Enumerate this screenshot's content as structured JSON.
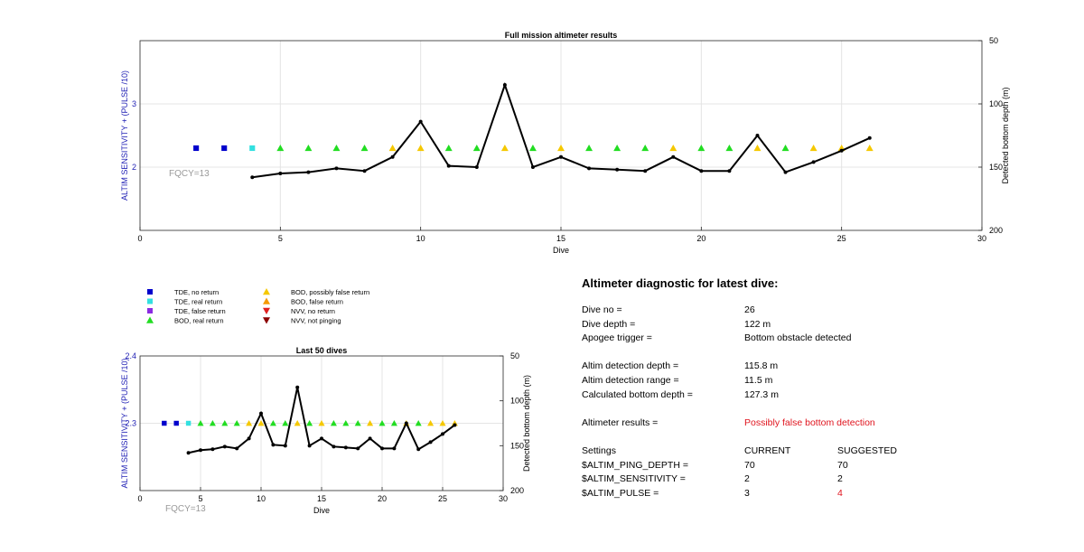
{
  "chart_data": [
    {
      "type": "scatter",
      "title": "Full mission altimeter results",
      "xlabel": "Dive",
      "ylabel": "ALTIM SENSITIVITY + (PULSE /10)",
      "ylabel_right": "Detected bottom depth (m)",
      "xlim": [
        0,
        30
      ],
      "ylim": [
        1,
        4
      ],
      "ylim_right": [
        50,
        200
      ],
      "right_axis_reversed": true,
      "xticks": [
        "0",
        "5",
        "10",
        "15",
        "20",
        "25",
        "30"
      ],
      "yticks": [
        "2",
        "3"
      ],
      "yticks_right": [
        "50",
        "100",
        "150",
        "200"
      ],
      "grid": true,
      "annotation": "FQCY=13",
      "series": [
        {
          "name": "TDE, no return",
          "marker": "square",
          "color": "#0000cc",
          "x": [
            2,
            3
          ],
          "y": [
            2.3,
            2.3
          ]
        },
        {
          "name": "TDE, real return",
          "marker": "square",
          "color": "#33e0e0",
          "x": [
            4
          ],
          "y": [
            2.3
          ]
        },
        {
          "name": "BOD, real return",
          "marker": "triangle-up",
          "color": "#22dd22",
          "x": [
            5,
            6,
            7,
            8,
            11,
            12,
            14,
            16,
            17,
            18,
            20,
            21,
            23
          ],
          "y": [
            2.3,
            2.3,
            2.3,
            2.3,
            2.3,
            2.3,
            2.3,
            2.3,
            2.3,
            2.3,
            2.3,
            2.3,
            2.3
          ]
        },
        {
          "name": "BOD, possibly false return",
          "marker": "triangle-up",
          "color": "#f5c800",
          "x": [
            9,
            10,
            13,
            15,
            19,
            22,
            24,
            25,
            26
          ],
          "y": [
            2.3,
            2.3,
            2.3,
            2.3,
            2.3,
            2.3,
            2.3,
            2.3,
            2.3
          ]
        },
        {
          "name": "Detected bottom depth",
          "axis": "right",
          "color": "#000000",
          "x": [
            4,
            5,
            6,
            7,
            8,
            9,
            10,
            11,
            12,
            13,
            14,
            15,
            16,
            17,
            18,
            19,
            20,
            21,
            22,
            23,
            24,
            25,
            26
          ],
          "y": [
            158,
            155,
            154,
            151,
            153,
            142,
            114,
            149,
            150,
            85,
            150,
            142,
            151,
            152,
            153,
            142,
            153,
            153,
            125,
            154,
            146,
            137,
            127
          ]
        }
      ]
    },
    {
      "type": "scatter",
      "title": "Last 50 dives",
      "xlabel": "Dive",
      "ylabel": "ALTIM SENSITIVITY + (PULSE /10)",
      "ylabel_right": "Detected bottom depth (m)",
      "xlim": [
        0,
        30
      ],
      "ylim": [
        2.2,
        2.4
      ],
      "ylim_right": [
        50,
        200
      ],
      "right_axis_reversed": true,
      "xticks": [
        "0",
        "5",
        "10",
        "15",
        "20",
        "25",
        "30"
      ],
      "yticks": [
        "2.3",
        "2.4"
      ],
      "yticks_right": [
        "50",
        "100",
        "150",
        "200"
      ],
      "grid": true,
      "annotation": "FQCY=13",
      "series": [
        {
          "name": "TDE, no return",
          "marker": "square",
          "color": "#0000cc",
          "x": [
            2,
            3
          ],
          "y": [
            2.3,
            2.3
          ]
        },
        {
          "name": "TDE, real return",
          "marker": "square",
          "color": "#33e0e0",
          "x": [
            4
          ],
          "y": [
            2.3
          ]
        },
        {
          "name": "BOD, real return",
          "marker": "triangle-up",
          "color": "#22dd22",
          "x": [
            5,
            6,
            7,
            8,
            11,
            12,
            14,
            16,
            17,
            18,
            20,
            21,
            23
          ],
          "y": [
            2.3,
            2.3,
            2.3,
            2.3,
            2.3,
            2.3,
            2.3,
            2.3,
            2.3,
            2.3,
            2.3,
            2.3,
            2.3
          ]
        },
        {
          "name": "BOD, possibly false return",
          "marker": "triangle-up",
          "color": "#f5c800",
          "x": [
            9,
            10,
            13,
            15,
            19,
            22,
            24,
            25,
            26
          ],
          "y": [
            2.3,
            2.3,
            2.3,
            2.3,
            2.3,
            2.3,
            2.3,
            2.3,
            2.3
          ]
        },
        {
          "name": "Detected bottom depth",
          "axis": "right",
          "color": "#000000",
          "x": [
            4,
            5,
            6,
            7,
            8,
            9,
            10,
            11,
            12,
            13,
            14,
            15,
            16,
            17,
            18,
            19,
            20,
            21,
            22,
            23,
            24,
            25,
            26
          ],
          "y": [
            158,
            155,
            154,
            151,
            153,
            142,
            114,
            149,
            150,
            85,
            150,
            142,
            151,
            152,
            153,
            142,
            153,
            153,
            125,
            154,
            146,
            137,
            127
          ]
        }
      ]
    }
  ],
  "legend": [
    {
      "label": "TDE, no return",
      "marker": "square",
      "color": "#0000cc"
    },
    {
      "label": "TDE, real return",
      "marker": "square",
      "color": "#33e0e0"
    },
    {
      "label": "TDE, false return",
      "marker": "square",
      "color": "#8a2be2"
    },
    {
      "label": "BOD, real return",
      "marker": "triangle-up",
      "color": "#22dd22"
    },
    {
      "label": "BOD, possibly false return",
      "marker": "triangle-up",
      "color": "#f5c800"
    },
    {
      "label": "BOD, false return",
      "marker": "triangle-up",
      "color": "#f59a00"
    },
    {
      "label": "NVV, no return",
      "marker": "triangle-down",
      "color": "#e02020"
    },
    {
      "label": "NVV, not pinging",
      "marker": "triangle-down",
      "color": "#8b0000"
    }
  ],
  "diagnostic": {
    "heading": "Altimeter diagnostic for latest dive:",
    "dive_no_label": "Dive no =",
    "dive_no": "26",
    "dive_depth_label": "Dive depth =",
    "dive_depth": "122 m",
    "apogee_label": "Apogee trigger =",
    "apogee": "Bottom obstacle detected",
    "detection_depth_label": "Altim detection depth =",
    "detection_depth": "115.8 m",
    "detection_range_label": "Altim detection range =",
    "detection_range": "11.5 m",
    "bottom_depth_label": "Calculated bottom depth =",
    "bottom_depth": "127.3 m",
    "results_label": "Altimeter results =",
    "results": "Possibly false bottom detection",
    "settings_label": "Settings",
    "current_label": "CURRENT",
    "suggested_label": "SUGGESTED",
    "ping_depth_label": "$ALTIM_PING_DEPTH =",
    "ping_depth_current": "70",
    "ping_depth_suggested": "70",
    "sensitivity_label": "$ALTIM_SENSITIVITY =",
    "sensitivity_current": "2",
    "sensitivity_suggested": "2",
    "pulse_label": "$ALTIM_PULSE =",
    "pulse_current": "3",
    "pulse_suggested": "4"
  }
}
